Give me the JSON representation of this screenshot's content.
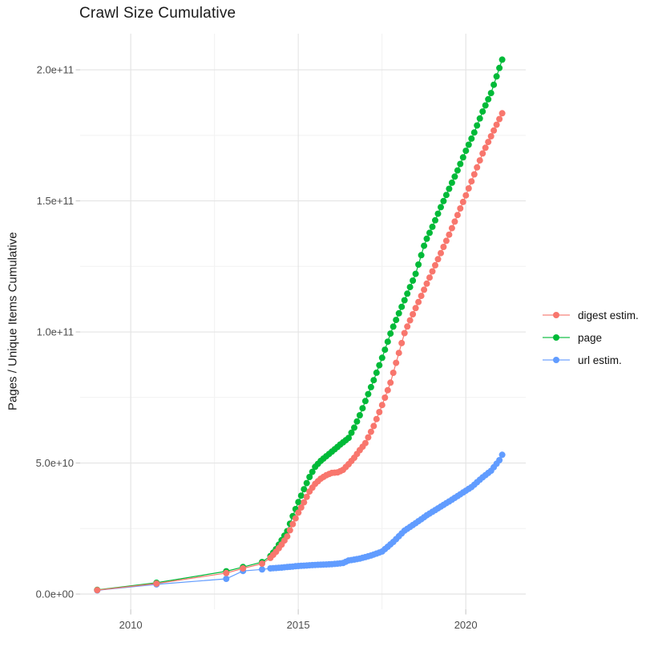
{
  "chart_data": {
    "type": "line",
    "title": "Crawl Size Cumulative",
    "xlabel": "",
    "ylabel": "Pages / Unique Items Cumulative",
    "values_unit": "billions of items (1e9)",
    "x_axis": {
      "domain": [
        2008.49,
        2021.79
      ],
      "major_ticks": [
        2010,
        2015,
        2020
      ],
      "major_labels": [
        "2010",
        "2015",
        "2020"
      ],
      "minor_ticks": [
        2012.5,
        2017.5
      ]
    },
    "y_axis": {
      "domain": [
        -5.81,
        213.79
      ],
      "major_ticks": [
        0,
        50,
        100,
        150,
        200
      ],
      "major_labels": [
        "0.0e+00",
        "5.0e+10",
        "1.0e+11",
        "1.5e+11",
        "2.0e+11"
      ],
      "minor_ticks": [
        25,
        75,
        125,
        175
      ]
    },
    "grid": "on",
    "legend_position": "right",
    "draw_order": [
      2,
      1,
      0
    ],
    "samples": {
      "early_x": [
        2009.0,
        2010.77,
        2012.85,
        2013.35,
        2013.92
      ],
      "monthly_start": 2014.17,
      "monthly_end": 2021.09,
      "monthly_step": 0.0833333
    },
    "series": [
      {
        "name": "digest estim.",
        "color": "#F8766D",
        "anchors": [
          [
            2009.0,
            1.5
          ],
          [
            2010.77,
            4.0
          ],
          [
            2012.85,
            8.0
          ],
          [
            2013.35,
            9.8
          ],
          [
            2013.92,
            11.6
          ],
          [
            2014.17,
            13.8
          ],
          [
            2014.33,
            16.0
          ],
          [
            2014.5,
            18.8
          ],
          [
            2014.67,
            22.0
          ],
          [
            2014.83,
            26.5
          ],
          [
            2015.0,
            31.0
          ],
          [
            2015.17,
            35.0
          ],
          [
            2015.33,
            39.0
          ],
          [
            2015.5,
            42.0
          ],
          [
            2015.67,
            44.0
          ],
          [
            2015.83,
            45.3
          ],
          [
            2016.0,
            46.2
          ],
          [
            2016.17,
            46.4
          ],
          [
            2016.33,
            47.3
          ],
          [
            2016.5,
            49.5
          ],
          [
            2016.67,
            52.0
          ],
          [
            2016.83,
            54.8
          ],
          [
            2017.0,
            57.5
          ],
          [
            2017.25,
            64.0
          ],
          [
            2017.5,
            72.0
          ],
          [
            2017.75,
            80.5
          ],
          [
            2018.18,
            100.0
          ],
          [
            2018.5,
            109.0
          ],
          [
            2019.0,
            123.0
          ],
          [
            2019.5,
            137.0
          ],
          [
            2020.0,
            152.0
          ],
          [
            2020.5,
            168.0
          ],
          [
            2021.09,
            183.5
          ]
        ]
      },
      {
        "name": "page",
        "color": "#00BA38",
        "anchors": [
          [
            2009.0,
            1.6
          ],
          [
            2010.77,
            4.3
          ],
          [
            2012.85,
            8.7
          ],
          [
            2013.35,
            10.3
          ],
          [
            2013.92,
            12.2
          ],
          [
            2014.17,
            14.5
          ],
          [
            2014.33,
            17.0
          ],
          [
            2014.5,
            20.5
          ],
          [
            2014.67,
            24.0
          ],
          [
            2014.83,
            29.5
          ],
          [
            2015.0,
            35.0
          ],
          [
            2015.17,
            40.0
          ],
          [
            2015.33,
            44.5
          ],
          [
            2015.5,
            48.5
          ],
          [
            2015.67,
            50.8
          ],
          [
            2015.83,
            52.5
          ],
          [
            2016.0,
            54.3
          ],
          [
            2016.25,
            57.0
          ],
          [
            2016.5,
            59.5
          ],
          [
            2016.67,
            63.5
          ],
          [
            2016.83,
            68.0
          ],
          [
            2017.0,
            73.5
          ],
          [
            2017.25,
            81.5
          ],
          [
            2017.5,
            90.0
          ],
          [
            2017.77,
            100.0
          ],
          [
            2018.0,
            107.0
          ],
          [
            2018.25,
            114.5
          ],
          [
            2018.5,
            122.0
          ],
          [
            2018.78,
            134.0
          ],
          [
            2019.0,
            140.0
          ],
          [
            2019.25,
            147.5
          ],
          [
            2019.5,
            154.5
          ],
          [
            2019.75,
            161.5
          ],
          [
            2020.0,
            169.0
          ],
          [
            2020.25,
            176.0
          ],
          [
            2020.5,
            184.0
          ],
          [
            2020.75,
            191.0
          ],
          [
            2021.09,
            204.0
          ]
        ]
      },
      {
        "name": "url estim.",
        "color": "#619CFF",
        "anchors": [
          [
            2009.0,
            1.4
          ],
          [
            2010.77,
            3.7
          ],
          [
            2012.85,
            5.8
          ],
          [
            2013.35,
            8.8
          ],
          [
            2013.92,
            9.4
          ],
          [
            2014.17,
            9.8
          ],
          [
            2014.5,
            10.1
          ],
          [
            2015.0,
            10.7
          ],
          [
            2015.5,
            11.1
          ],
          [
            2016.0,
            11.4
          ],
          [
            2016.33,
            11.8
          ],
          [
            2016.5,
            12.8
          ],
          [
            2016.83,
            13.5
          ],
          [
            2017.17,
            14.7
          ],
          [
            2017.5,
            16.2
          ],
          [
            2017.83,
            19.8
          ],
          [
            2018.17,
            24.2
          ],
          [
            2018.5,
            27.0
          ],
          [
            2018.83,
            30.0
          ],
          [
            2019.17,
            32.7
          ],
          [
            2019.5,
            35.3
          ],
          [
            2019.83,
            38.0
          ],
          [
            2020.17,
            40.8
          ],
          [
            2020.5,
            44.5
          ],
          [
            2020.75,
            47.0
          ],
          [
            2021.0,
            51.0
          ],
          [
            2021.09,
            53.2
          ]
        ]
      }
    ]
  }
}
